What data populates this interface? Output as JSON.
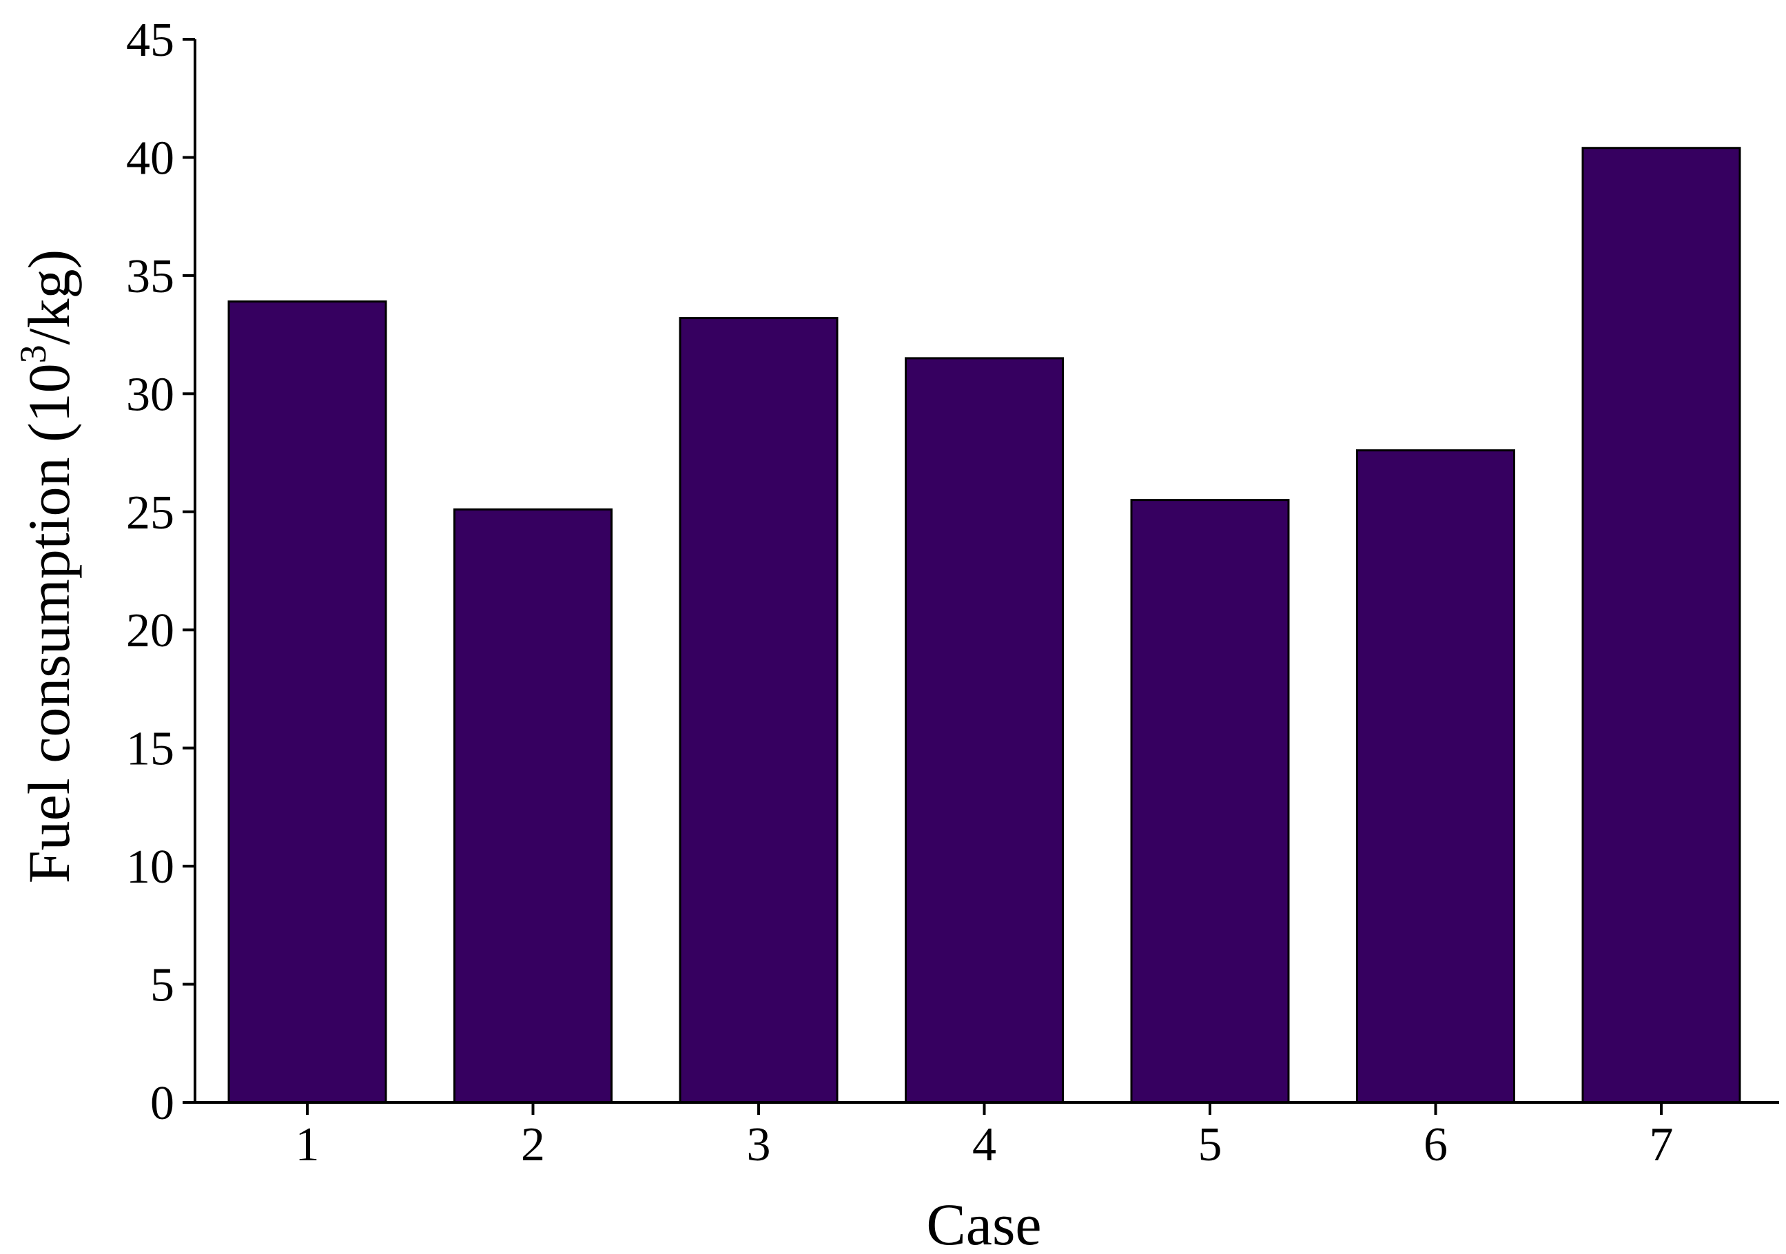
{
  "chart_data": {
    "type": "bar",
    "categories": [
      "1",
      "2",
      "3",
      "4",
      "5",
      "6",
      "7"
    ],
    "values": [
      33.9,
      25.1,
      33.2,
      31.5,
      25.5,
      27.6,
      40.4
    ],
    "xlabel": "Case",
    "ylabel_parts": [
      "Fuel consumption (10",
      "3",
      "/kg)"
    ],
    "ylim": [
      0,
      45
    ],
    "yticks": [
      0,
      5,
      10,
      15,
      20,
      25,
      30,
      35,
      40,
      45
    ],
    "bar_color": "#360060",
    "grid": false,
    "legend": "none"
  }
}
